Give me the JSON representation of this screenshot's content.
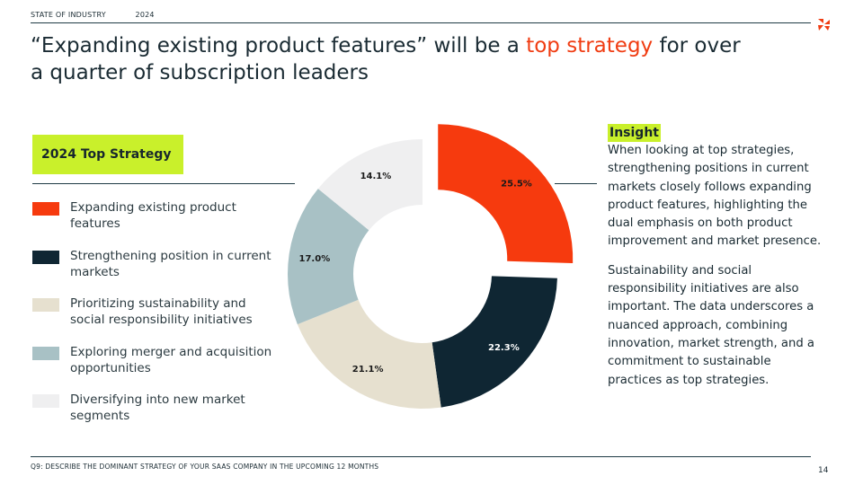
{
  "header": {
    "section": "STATE OF INDUSTRY",
    "year": "2024"
  },
  "title": {
    "part1": "“Expanding existing product features” will be a ",
    "accent": "top strategy",
    "part2": " for over a quarter of subscription leaders"
  },
  "legend": {
    "heading": "2024 Top Strategy",
    "items": [
      {
        "label": "Expanding existing product features",
        "color": "#f63a0e"
      },
      {
        "label": "Strengthening position in current markets",
        "color": "#0f2633"
      },
      {
        "label": "Prioritizing sustainability and social responsibility initiatives",
        "color": "#e6e0cf"
      },
      {
        "label": "Exploring merger and acquisition opportunities",
        "color": "#a8c1c5"
      },
      {
        "label": "Diversifying into new market segments",
        "color": "#efeff0"
      }
    ]
  },
  "chart_data": {
    "type": "pie",
    "variant": "donut",
    "title": "2024 Top Strategy",
    "categories": [
      "Expanding existing product features",
      "Strengthening position in current markets",
      "Prioritizing sustainability and social responsibility initiatives",
      "Exploring merger and acquisition opportunities",
      "Diversifying into new market segments"
    ],
    "values": [
      25.5,
      22.3,
      21.1,
      17.0,
      14.1
    ],
    "labels": [
      "25.5%",
      "22.3%",
      "21.1%",
      "17.0%",
      "14.1%"
    ],
    "colors": [
      "#f63a0e",
      "#0f2633",
      "#e6e0cf",
      "#a8c1c5",
      "#efeff0"
    ],
    "label_colors": [
      "#1a1a1a",
      "#ffffff",
      "#1a1a1a",
      "#1a1a1a",
      "#1a1a1a"
    ],
    "exploded": [
      true,
      false,
      false,
      false,
      false
    ],
    "legend_position": "left"
  },
  "insight": {
    "title": "Insight",
    "paragraph1": "When looking at top strategies, strengthening positions in current markets closely follows expanding product features, highlighting the dual emphasis on both product improvement and market presence.",
    "paragraph2": "Sustainability and social responsibility initiatives are also important. The data underscores a nuanced approach, combining innovation, market strength, and a commitment to sustainable practices as top strategies."
  },
  "footer": {
    "question": "Q9: DESCRIBE THE DOMINANT STRATEGY OF YOUR SAAS COMPANY IN THE UPCOMING 12 MONTHS",
    "page": "14"
  },
  "brand": {
    "accent_color": "#f03c12",
    "highlight_color": "#c9f02b"
  }
}
